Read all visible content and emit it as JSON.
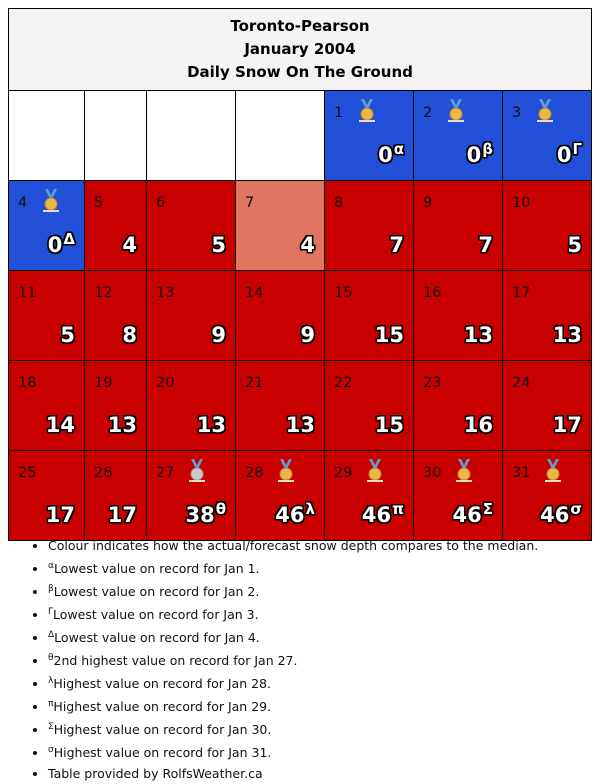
{
  "title": {
    "line1": "Toronto-Pearson",
    "line2": "January 2004",
    "line3": "Daily Snow On The Ground"
  },
  "colors": {
    "below_median": "#2350d8",
    "above_median": "#c80000",
    "near_median": "#e07560",
    "empty": "#ffffff",
    "gold_medal": "#e8b84a",
    "silver_medal": "#c8c8c8",
    "ribbon": "#5aa0d8"
  },
  "chart_data": {
    "type": "table",
    "title": "Toronto-Pearson January 2004 Daily Snow On The Ground",
    "leading_blank_days": 4,
    "days": [
      {
        "day": "1",
        "value": "0",
        "mark": "α",
        "medal": "gold",
        "category": "below"
      },
      {
        "day": "2",
        "value": "0",
        "mark": "β",
        "medal": "gold",
        "category": "below"
      },
      {
        "day": "3",
        "value": "0",
        "mark": "Γ",
        "medal": "gold",
        "category": "below"
      },
      {
        "day": "4",
        "value": "0",
        "mark": "Δ",
        "medal": "gold",
        "category": "below"
      },
      {
        "day": "5",
        "value": "4",
        "mark": "",
        "medal": "",
        "category": "above"
      },
      {
        "day": "6",
        "value": "5",
        "mark": "",
        "medal": "",
        "category": "above"
      },
      {
        "day": "7",
        "value": "4",
        "mark": "",
        "medal": "",
        "category": "near"
      },
      {
        "day": "8",
        "value": "7",
        "mark": "",
        "medal": "",
        "category": "above"
      },
      {
        "day": "9",
        "value": "7",
        "mark": "",
        "medal": "",
        "category": "above"
      },
      {
        "day": "10",
        "value": "5",
        "mark": "",
        "medal": "",
        "category": "above"
      },
      {
        "day": "11",
        "value": "5",
        "mark": "",
        "medal": "",
        "category": "above"
      },
      {
        "day": "12",
        "value": "8",
        "mark": "",
        "medal": "",
        "category": "above"
      },
      {
        "day": "13",
        "value": "9",
        "mark": "",
        "medal": "",
        "category": "above"
      },
      {
        "day": "14",
        "value": "9",
        "mark": "",
        "medal": "",
        "category": "above"
      },
      {
        "day": "15",
        "value": "15",
        "mark": "",
        "medal": "",
        "category": "above"
      },
      {
        "day": "16",
        "value": "13",
        "mark": "",
        "medal": "",
        "category": "above"
      },
      {
        "day": "17",
        "value": "13",
        "mark": "",
        "medal": "",
        "category": "above"
      },
      {
        "day": "18",
        "value": "14",
        "mark": "",
        "medal": "",
        "category": "above"
      },
      {
        "day": "19",
        "value": "13",
        "mark": "",
        "medal": "",
        "category": "above"
      },
      {
        "day": "20",
        "value": "13",
        "mark": "",
        "medal": "",
        "category": "above"
      },
      {
        "day": "21",
        "value": "13",
        "mark": "",
        "medal": "",
        "category": "above"
      },
      {
        "day": "22",
        "value": "15",
        "mark": "",
        "medal": "",
        "category": "above"
      },
      {
        "day": "23",
        "value": "16",
        "mark": "",
        "medal": "",
        "category": "above"
      },
      {
        "day": "24",
        "value": "17",
        "mark": "",
        "medal": "",
        "category": "above"
      },
      {
        "day": "25",
        "value": "17",
        "mark": "",
        "medal": "",
        "category": "above"
      },
      {
        "day": "26",
        "value": "17",
        "mark": "",
        "medal": "",
        "category": "above"
      },
      {
        "day": "27",
        "value": "38",
        "mark": "θ",
        "medal": "silver",
        "category": "above"
      },
      {
        "day": "28",
        "value": "46",
        "mark": "λ",
        "medal": "gold",
        "category": "above"
      },
      {
        "day": "29",
        "value": "46",
        "mark": "π",
        "medal": "gold",
        "category": "above"
      },
      {
        "day": "30",
        "value": "46",
        "mark": "Σ",
        "medal": "gold",
        "category": "above"
      },
      {
        "day": "31",
        "value": "46",
        "mark": "σ",
        "medal": "gold",
        "category": "above"
      }
    ]
  },
  "notes": [
    {
      "mark": "",
      "text": "Colour indicates how the actual/forecast snow depth compares to the median."
    },
    {
      "mark": "α",
      "text": "Lowest value on record for Jan 1."
    },
    {
      "mark": "β",
      "text": "Lowest value on record for Jan 2."
    },
    {
      "mark": "Γ",
      "text": "Lowest value on record for Jan 3."
    },
    {
      "mark": "Δ",
      "text": "Lowest value on record for Jan 4."
    },
    {
      "mark": "θ",
      "text": "2nd highest value on record for Jan 27."
    },
    {
      "mark": "λ",
      "text": "Highest value on record for Jan 28."
    },
    {
      "mark": "π",
      "text": "Highest value on record for Jan 29."
    },
    {
      "mark": "Σ",
      "text": "Highest value on record for Jan 30."
    },
    {
      "mark": "σ",
      "text": "Highest value on record for Jan 31."
    },
    {
      "mark": "",
      "text": "Table provided by RolfsWeather.ca"
    }
  ]
}
